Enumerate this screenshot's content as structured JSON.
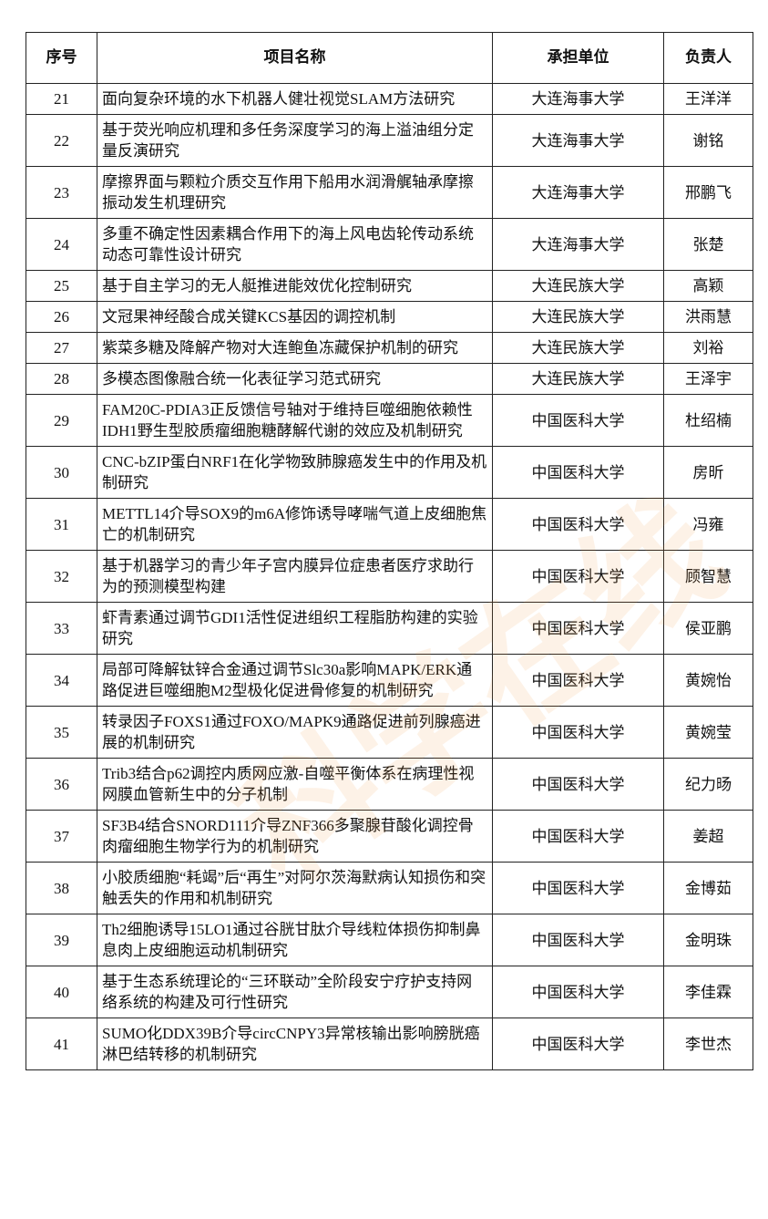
{
  "table": {
    "header": [
      "序号",
      "项目名称",
      "承担单位",
      "负责人"
    ],
    "rows": [
      [
        21,
        "面向复杂环境的水下机器人健壮视觉SLAM方法研究",
        "大连海事大学",
        "王洋洋"
      ],
      [
        22,
        "基于荧光响应机理和多任务深度学习的海上溢油组分定量反演研究",
        "大连海事大学",
        "谢铭"
      ],
      [
        23,
        "摩擦界面与颗粒介质交互作用下船用水润滑艉轴承摩擦振动发生机理研究",
        "大连海事大学",
        "邢鹏飞"
      ],
      [
        24,
        "多重不确定性因素耦合作用下的海上风电齿轮传动系统动态可靠性设计研究",
        "大连海事大学",
        "张楚"
      ],
      [
        25,
        "基于自主学习的无人艇推进能效优化控制研究",
        "大连民族大学",
        "高颖"
      ],
      [
        26,
        "文冠果神经酸合成关键KCS基因的调控机制",
        "大连民族大学",
        "洪雨慧"
      ],
      [
        27,
        "紫菜多糖及降解产物对大连鲍鱼冻藏保护机制的研究",
        "大连民族大学",
        "刘裕"
      ],
      [
        28,
        "多模态图像融合统一化表征学习范式研究",
        "大连民族大学",
        "王泽宇"
      ],
      [
        29,
        "FAM20C-PDIA3正反馈信号轴对于维持巨噬细胞依赖性IDH1野生型胶质瘤细胞糖酵解代谢的效应及机制研究",
        "中国医科大学",
        "杜绍楠"
      ],
      [
        30,
        "CNC-bZIP蛋白NRF1在化学物致肺腺癌发生中的作用及机制研究",
        "中国医科大学",
        "房昕"
      ],
      [
        31,
        "METTL14介导SOX9的m6A修饰诱导哮喘气道上皮细胞焦亡的机制研究",
        "中国医科大学",
        "冯雍"
      ],
      [
        32,
        "基于机器学习的青少年子宫内膜异位症患者医疗求助行为的预测模型构建",
        "中国医科大学",
        "顾智慧"
      ],
      [
        33,
        "虾青素通过调节GDI1活性促进组织工程脂肪构建的实验研究",
        "中国医科大学",
        "侯亚鹏"
      ],
      [
        34,
        "局部可降解钛锌合金通过调节Slc30a影响MAPK/ERK通路促进巨噬细胞M2型极化促进骨修复的机制研究",
        "中国医科大学",
        "黄婉怡"
      ],
      [
        35,
        "转录因子FOXS1通过FOXO/MAPK9通路促进前列腺癌进展的机制研究",
        "中国医科大学",
        "黄婉莹"
      ],
      [
        36,
        "Trib3结合p62调控内质网应激-自噬平衡体系在病理性视网膜血管新生中的分子机制",
        "中国医科大学",
        "纪力旸"
      ],
      [
        37,
        "SF3B4结合SNORD111介导ZNF366多聚腺苷酸化调控骨肉瘤细胞生物学行为的机制研究",
        "中国医科大学",
        "姜超"
      ],
      [
        38,
        "小胶质细胞“耗竭”后“再生”对阿尔茨海默病认知损伤和突触丢失的作用和机制研究",
        "中国医科大学",
        "金博茹"
      ],
      [
        39,
        "Th2细胞诱导15LO1通过谷胱甘肽介导线粒体损伤抑制鼻息肉上皮细胞运动机制研究",
        "中国医科大学",
        "金明珠"
      ],
      [
        40,
        "基于生态系统理论的“三环联动”全阶段安宁疗护支持网络系统的构建及可行性研究",
        "中国医科大学",
        "李佳霖"
      ],
      [
        41,
        "SUMO化DDX39B介导circCNPY3异常核输出影响膀胱癌淋巴结转移的机制研究",
        "中国医科大学",
        "李世杰"
      ]
    ]
  },
  "watermark": "科学在线"
}
